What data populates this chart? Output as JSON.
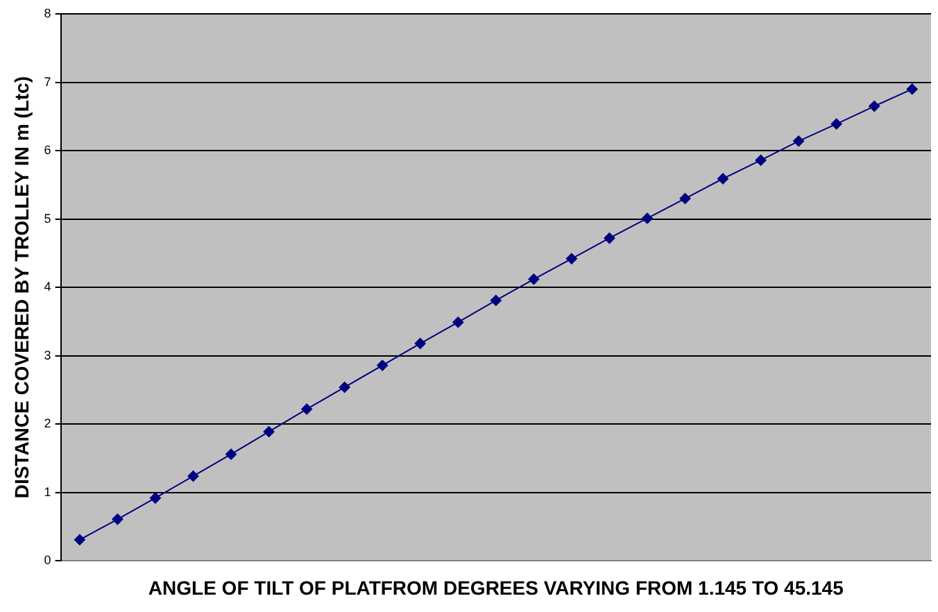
{
  "chart_data": {
    "type": "line",
    "xlabel": "ANGLE OF TILT OF PLATFROM DEGREES VARYING FROM 1.145 TO 45.145",
    "ylabel": "DISTANCE COVERED BY TROLLEY IN m (Ltc)",
    "categories": [
      null,
      null,
      null,
      null,
      null,
      null,
      null,
      null,
      null,
      null,
      null,
      null,
      null,
      null,
      null,
      null,
      null,
      null,
      null,
      null,
      null,
      null,
      null
    ],
    "series": [
      {
        "color": "#000080",
        "values": [
          0.31,
          0.61,
          0.92,
          1.24,
          1.56,
          1.89,
          2.22,
          2.54,
          2.86,
          3.18,
          3.49,
          3.81,
          4.12,
          4.42,
          4.72,
          5.01,
          5.3,
          5.59,
          5.86,
          6.14,
          6.39,
          6.65,
          6.9
        ]
      }
    ],
    "ylim": [
      0,
      8
    ],
    "yticks": [
      0,
      1,
      2,
      3,
      4,
      5,
      6,
      7,
      8
    ],
    "grid": "y",
    "legend": false,
    "marker": "diamond",
    "line_style": "solid",
    "tick_labels": "y"
  }
}
